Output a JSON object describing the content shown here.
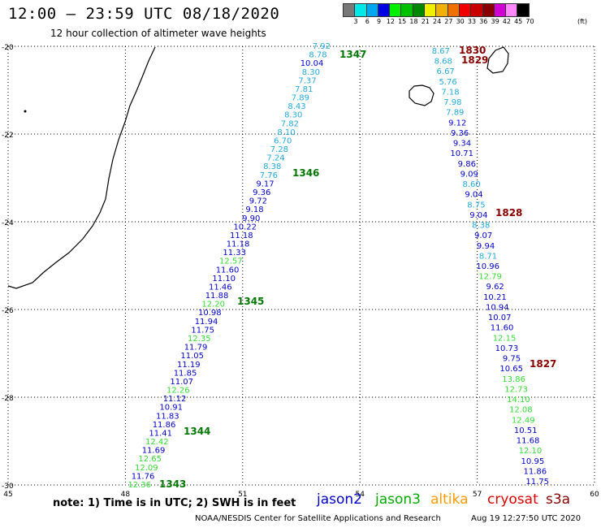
{
  "header": {
    "title": "12:00 – 23:59 UTC 08/18/2020",
    "subtitle": "12 hour collection of altimeter wave heights"
  },
  "color_scale": {
    "unit": "(ft)",
    "bins": [
      {
        "label": "3",
        "color": "#787878"
      },
      {
        "label": "6",
        "color": "#00e8e8"
      },
      {
        "label": "9",
        "color": "#00a8f0"
      },
      {
        "label": "12",
        "color": "#0000e0"
      },
      {
        "label": "15",
        "color": "#00f000"
      },
      {
        "label": "18",
        "color": "#00c000"
      },
      {
        "label": "21",
        "color": "#008800"
      },
      {
        "label": "24",
        "color": "#f0f000"
      },
      {
        "label": "27",
        "color": "#f0b000"
      },
      {
        "label": "30",
        "color": "#f07000"
      },
      {
        "label": "33",
        "color": "#f00000"
      },
      {
        "label": "36",
        "color": "#c80000"
      },
      {
        "label": "39",
        "color": "#880000"
      },
      {
        "label": "42",
        "color": "#d000d0"
      },
      {
        "label": "45",
        "color": "#ff88ff"
      },
      {
        "label": "70",
        "color": "#000000"
      }
    ]
  },
  "axes": {
    "x_ticks": [
      "45",
      "48",
      "51",
      "54",
      "57",
      "60"
    ],
    "y_ticks": [
      "-20",
      "-22",
      "-24",
      "-26",
      "-28",
      "-30"
    ],
    "lon_range": [
      45,
      60
    ],
    "lat_range": [
      -30,
      -20
    ]
  },
  "colors": {
    "blue": "#0000cc",
    "cyan": "#22aadd",
    "green": "#33dd33",
    "darkgreen": "#007700",
    "darkred": "#880000",
    "orange": "#ff9900",
    "coast": "#000000",
    "grid": "#000000"
  },
  "track1": {
    "labels": [
      {
        "v": "7.92",
        "c": "cyan"
      },
      {
        "v": "8.78",
        "c": "cyan"
      },
      {
        "v": "10.04",
        "c": "blue"
      },
      {
        "v": "8.30",
        "c": "cyan"
      },
      {
        "v": "7.37",
        "c": "cyan"
      },
      {
        "v": "7.81",
        "c": "cyan"
      },
      {
        "v": "7.89",
        "c": "cyan"
      },
      {
        "v": "8.43",
        "c": "cyan"
      },
      {
        "v": "8.30",
        "c": "cyan"
      },
      {
        "v": "7.82",
        "c": "cyan"
      },
      {
        "v": "8.10",
        "c": "cyan"
      },
      {
        "v": "6.70",
        "c": "cyan"
      },
      {
        "v": "7.28",
        "c": "cyan"
      },
      {
        "v": "7.24",
        "c": "cyan"
      },
      {
        "v": "8.38",
        "c": "cyan"
      },
      {
        "v": "7.76",
        "c": "cyan"
      },
      {
        "v": "9.17",
        "c": "blue"
      },
      {
        "v": "9.36",
        "c": "blue"
      },
      {
        "v": "9.72",
        "c": "blue"
      },
      {
        "v": "9.18",
        "c": "blue"
      },
      {
        "v": "9.90",
        "c": "blue"
      },
      {
        "v": "10.22",
        "c": "blue"
      },
      {
        "v": "11.18",
        "c": "blue"
      },
      {
        "v": "11.18",
        "c": "blue"
      },
      {
        "v": "11.33",
        "c": "blue"
      },
      {
        "v": "12.57",
        "c": "green"
      },
      {
        "v": "11.60",
        "c": "blue"
      },
      {
        "v": "11.10",
        "c": "blue"
      },
      {
        "v": "11.46",
        "c": "blue"
      },
      {
        "v": "11.88",
        "c": "blue"
      },
      {
        "v": "12.20",
        "c": "green"
      },
      {
        "v": "10.98",
        "c": "blue"
      },
      {
        "v": "11.94",
        "c": "blue"
      },
      {
        "v": "11.75",
        "c": "blue"
      },
      {
        "v": "12.35",
        "c": "green"
      },
      {
        "v": "11.79",
        "c": "blue"
      },
      {
        "v": "11.05",
        "c": "blue"
      },
      {
        "v": "11.19",
        "c": "blue"
      },
      {
        "v": "11.85",
        "c": "blue"
      },
      {
        "v": "11.07",
        "c": "blue"
      },
      {
        "v": "12.26",
        "c": "green"
      },
      {
        "v": "11.12",
        "c": "blue"
      },
      {
        "v": "10.91",
        "c": "blue"
      },
      {
        "v": "11.83",
        "c": "blue"
      },
      {
        "v": "11.86",
        "c": "blue"
      },
      {
        "v": "11.41",
        "c": "blue"
      },
      {
        "v": "12.42",
        "c": "green"
      },
      {
        "v": "11.69",
        "c": "blue"
      },
      {
        "v": "12.65",
        "c": "green"
      },
      {
        "v": "12.09",
        "c": "green"
      },
      {
        "v": "11.76",
        "c": "blue"
      },
      {
        "v": "12.36",
        "c": "green"
      }
    ]
  },
  "track2": {
    "labels": [
      {
        "v": "8.67",
        "c": "cyan"
      },
      {
        "v": "8.68",
        "c": "cyan"
      },
      {
        "v": "6.67",
        "c": "cyan"
      },
      {
        "v": "5.76",
        "c": "cyan"
      },
      {
        "v": "7.18",
        "c": "cyan"
      },
      {
        "v": "7.98",
        "c": "cyan"
      },
      {
        "v": "7.89",
        "c": "cyan"
      },
      {
        "v": "9.12",
        "c": "blue"
      },
      {
        "v": "9.36",
        "c": "blue"
      },
      {
        "v": "9.34",
        "c": "blue"
      },
      {
        "v": "10.71",
        "c": "blue"
      },
      {
        "v": "9.86",
        "c": "blue"
      },
      {
        "v": "9.09",
        "c": "blue"
      },
      {
        "v": "8.60",
        "c": "cyan"
      },
      {
        "v": "9.04",
        "c": "blue"
      },
      {
        "v": "8.75",
        "c": "cyan"
      },
      {
        "v": "9.04",
        "c": "blue"
      },
      {
        "v": "8.38",
        "c": "cyan"
      },
      {
        "v": "9.07",
        "c": "blue"
      },
      {
        "v": "9.94",
        "c": "blue"
      },
      {
        "v": "8.71",
        "c": "cyan"
      },
      {
        "v": "10.96",
        "c": "blue"
      },
      {
        "v": "12.79",
        "c": "green"
      },
      {
        "v": "9.62",
        "c": "blue"
      },
      {
        "v": "10.21",
        "c": "blue"
      },
      {
        "v": "10.94",
        "c": "blue"
      },
      {
        "v": "10.07",
        "c": "blue"
      },
      {
        "v": "11.60",
        "c": "blue"
      },
      {
        "v": "12.15",
        "c": "green"
      },
      {
        "v": "10.73",
        "c": "blue"
      },
      {
        "v": "9.75",
        "c": "blue"
      },
      {
        "v": "10.65",
        "c": "blue"
      },
      {
        "v": "13.86",
        "c": "green"
      },
      {
        "v": "12.73",
        "c": "green"
      },
      {
        "v": "14.10",
        "c": "green"
      },
      {
        "v": "12.08",
        "c": "green"
      },
      {
        "v": "12.49",
        "c": "green"
      },
      {
        "v": "10.51",
        "c": "blue"
      },
      {
        "v": "11.68",
        "c": "blue"
      },
      {
        "v": "12.10",
        "c": "green"
      },
      {
        "v": "10.95",
        "c": "blue"
      },
      {
        "v": "11.86",
        "c": "blue"
      },
      {
        "v": "11.75",
        "c": "blue"
      }
    ]
  },
  "time_labels_green": [
    "1347",
    "1346",
    "1345",
    "1344",
    "1343"
  ],
  "time_labels_red": [
    "1830",
    "1829",
    "1828",
    "1827"
  ],
  "footer": {
    "note": "note:  1) Time is in UTC;  2) SWH is in feet",
    "sat_jason2": "jason2",
    "sat_jason3": "jason3",
    "sat_altika": "altika",
    "sat_cryosat": "cryosat",
    "sat_s3a": "s3a",
    "credit": "NOAA/NESDIS Center for Satellite Applications and Research",
    "timestamp": "Aug 19 12:27:50 UTC 2020"
  }
}
